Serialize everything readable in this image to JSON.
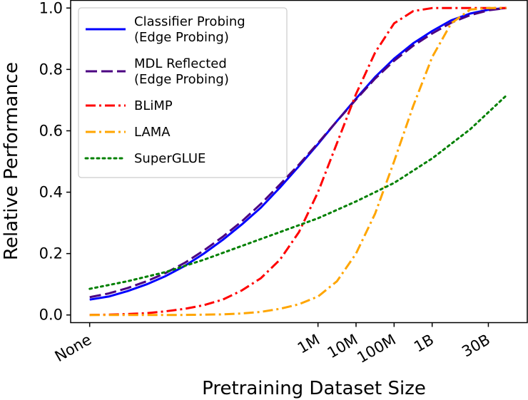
{
  "chart_data": {
    "type": "line",
    "title": "",
    "xlabel": "Pretraining Dataset Size",
    "ylabel": "Relative Performance",
    "x_ticks": [
      {
        "value": 0,
        "label": "None"
      },
      {
        "value": 6,
        "label": "1M"
      },
      {
        "value": 7,
        "label": "10M"
      },
      {
        "value": 8,
        "label": "100M"
      },
      {
        "value": 9,
        "label": "1B"
      },
      {
        "value": 10.477,
        "label": "30B"
      }
    ],
    "xlim": [
      -0.5,
      11.5
    ],
    "ylim": [
      -0.025,
      1.025
    ],
    "y_ticks": [
      0.0,
      0.2,
      0.4,
      0.6,
      0.8,
      1.0
    ],
    "y_tick_labels": [
      "0.0",
      "0.2",
      "0.4",
      "0.6",
      "0.8",
      "1.0"
    ],
    "grid": false,
    "legend_position": "top-left",
    "series": [
      {
        "name": "Classifier Probing\n(Edge Probing)",
        "legend_lines": [
          "Classifier Probing",
          "(Edge Probing)"
        ],
        "color": "#0000ff",
        "dash": "solid",
        "x": [
          0,
          0.5,
          1,
          1.5,
          2,
          2.5,
          3,
          3.5,
          4,
          4.5,
          5,
          5.5,
          6,
          6.5,
          7,
          7.5,
          8,
          8.5,
          9,
          9.5,
          10,
          10.5,
          10.95
        ],
        "y": [
          0.05,
          0.06,
          0.078,
          0.1,
          0.127,
          0.16,
          0.2,
          0.245,
          0.295,
          0.35,
          0.415,
          0.485,
          0.557,
          0.632,
          0.705,
          0.775,
          0.835,
          0.885,
          0.925,
          0.96,
          0.982,
          0.995,
          1.0
        ]
      },
      {
        "name": "MDL Reflected\n(Edge Probing)",
        "legend_lines": [
          "MDL Reflected",
          "(Edge Probing)"
        ],
        "color": "#4b0082",
        "dash": "dashed",
        "x": [
          0,
          0.5,
          1,
          1.5,
          2,
          2.5,
          3,
          3.5,
          4,
          4.5,
          5,
          5.5,
          6,
          6.5,
          7,
          7.5,
          8,
          8.5,
          9,
          9.5,
          10,
          10.5,
          10.95
        ],
        "y": [
          0.058,
          0.07,
          0.088,
          0.11,
          0.137,
          0.17,
          0.21,
          0.255,
          0.305,
          0.362,
          0.425,
          0.49,
          0.56,
          0.632,
          0.702,
          0.77,
          0.828,
          0.877,
          0.917,
          0.952,
          0.977,
          0.993,
          1.0
        ]
      },
      {
        "name": "BLiMP",
        "legend_lines": [
          "BLiMP"
        ],
        "color": "#ff0000",
        "dash": "dashdot",
        "x": [
          0,
          0.5,
          1,
          1.5,
          2,
          2.5,
          3,
          3.5,
          4,
          4.5,
          5,
          5.5,
          6,
          6.5,
          7,
          7.5,
          8,
          8.5,
          9,
          9.5,
          10,
          10.5,
          10.95
        ],
        "y": [
          0.0,
          0.001,
          0.003,
          0.006,
          0.012,
          0.02,
          0.032,
          0.05,
          0.08,
          0.12,
          0.18,
          0.27,
          0.4,
          0.56,
          0.72,
          0.855,
          0.95,
          0.99,
          1.0,
          1.0,
          1.0,
          1.0,
          1.0
        ]
      },
      {
        "name": "LAMA",
        "legend_lines": [
          "LAMA"
        ],
        "color": "#ffa500",
        "dash": "dashdot",
        "x": [
          0,
          0.5,
          1,
          1.5,
          2,
          2.5,
          3,
          3.5,
          4,
          4.5,
          5,
          5.5,
          6,
          6.5,
          7,
          7.5,
          8,
          8.5,
          9,
          9.5,
          10,
          10.5,
          10.95
        ],
        "y": [
          0.0,
          0.0,
          0.0,
          0.0,
          0.0,
          0.0,
          0.001,
          0.002,
          0.005,
          0.01,
          0.02,
          0.035,
          0.06,
          0.11,
          0.2,
          0.33,
          0.5,
          0.68,
          0.84,
          0.95,
          0.995,
          1.0,
          1.0
        ]
      },
      {
        "name": "SuperGLUE",
        "legend_lines": [
          "SuperGLUE"
        ],
        "color": "#008000",
        "dash": "dotted",
        "x": [
          0,
          1,
          2,
          3,
          4,
          5,
          6,
          7,
          8,
          9,
          10,
          10.95
        ],
        "y": [
          0.085,
          0.11,
          0.14,
          0.18,
          0.225,
          0.27,
          0.315,
          0.37,
          0.43,
          0.51,
          0.605,
          0.715
        ]
      }
    ]
  }
}
